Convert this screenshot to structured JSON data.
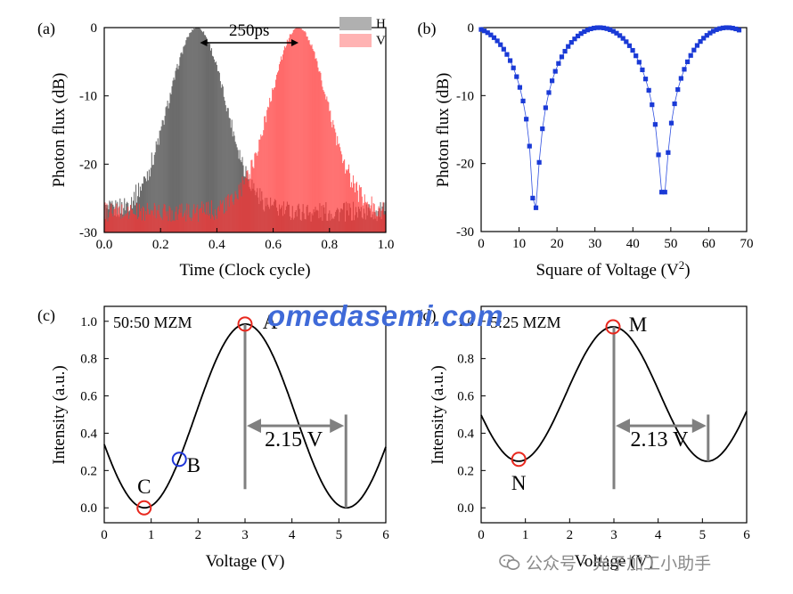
{
  "colors": {
    "axis": "#000000",
    "h_trace": "#555555",
    "v_trace": "#ff3333",
    "markers": "#1a3ad6",
    "circle_red": "#e8281e",
    "circle_blue": "#1f36d8",
    "arrow": "#808080",
    "watermark": "#3f6ad8"
  },
  "watermark": {
    "text": "omedasemi.com"
  },
  "footer": {
    "text": "公众号 · 光子加工小助手",
    "icon": "wechat-icon"
  },
  "chart_data": [
    {
      "panel": "(a)",
      "type": "area",
      "xlabel": "Time (Clock cycle)",
      "ylabel": "Photon flux (dB)",
      "xlim": [
        0.0,
        1.0
      ],
      "ylim": [
        -30,
        0
      ],
      "xticks": [
        "0.0",
        "0.2",
        "0.4",
        "0.6",
        "0.8",
        "1.0"
      ],
      "yticks": [
        "-30",
        "-20",
        "-10",
        "0"
      ],
      "legend": [
        "H",
        "V"
      ],
      "legend_position": "top-right",
      "annotations": [
        {
          "text": "250ps",
          "from": 0.34,
          "to": 0.69
        }
      ],
      "series": [
        {
          "name": "H",
          "peak_x": 0.33,
          "peak_y": 0,
          "sigma": 0.1,
          "floor": -27
        },
        {
          "name": "V",
          "peak_x": 0.69,
          "peak_y": 0,
          "sigma": 0.1,
          "floor": -27
        }
      ]
    },
    {
      "panel": "(b)",
      "type": "scatter",
      "xlabel": "Square of Voltage (V",
      "xlabel_sup": "2",
      "xlabel_end": ")",
      "ylabel": "Photon flux (dB)",
      "xlim": [
        0,
        70
      ],
      "ylim": [
        -30,
        0
      ],
      "xticks": [
        "0",
        "10",
        "20",
        "30",
        "40",
        "50",
        "60",
        "70"
      ],
      "yticks": [
        "-30",
        "-20",
        "-10",
        "0"
      ],
      "series": [
        {
          "x_start": 0,
          "x_end": 68,
          "step": 0.85,
          "minima": [
            14.2,
            48.0
          ],
          "min_values": [
            -26.5,
            -24.2
          ],
          "peaks": [
            31,
            63
          ],
          "start_value": -1.5
        }
      ]
    },
    {
      "panel": "(c)",
      "type": "line",
      "inset_label": "50:50 MZM",
      "xlabel": "Voltage (V)",
      "ylabel": "Intensity (a.u.)",
      "xlim": [
        0,
        6
      ],
      "ylim": [
        -0.08,
        1.08
      ],
      "xticks": [
        "0",
        "1",
        "2",
        "3",
        "4",
        "5",
        "6"
      ],
      "yticks": [
        "0.0",
        "0.2",
        "0.4",
        "0.6",
        "0.8",
        "1.0"
      ],
      "curve": {
        "vmax": 3.01,
        "period": 4.3,
        "ymin": 0.0,
        "ymax": 0.985
      },
      "points": [
        {
          "label": "A",
          "x": 3.0,
          "y": 0.985,
          "color": "red"
        },
        {
          "label": "B",
          "x": 1.6,
          "y": 0.26,
          "color": "blue"
        },
        {
          "label": "C",
          "x": 0.85,
          "y": 0.0,
          "color": "red"
        }
      ],
      "annotations": [
        {
          "text": "2.15 V",
          "from": 3.0,
          "to": 5.15
        }
      ]
    },
    {
      "panel": "(d)",
      "type": "line",
      "inset_label": "5:25 MZM",
      "xlabel": "Voltage (V)",
      "ylabel": "Intensity (a.u.)",
      "xlim": [
        0,
        6
      ],
      "ylim": [
        -0.08,
        1.08
      ],
      "xticks": [
        "0",
        "1",
        "2",
        "3",
        "4",
        "5",
        "6"
      ],
      "yticks": [
        "0.0",
        "0.2",
        "0.4",
        "0.6",
        "0.8",
        "1.0"
      ],
      "curve": {
        "vmax": 2.98,
        "period": 4.26,
        "ymin": 0.25,
        "ymax": 0.97
      },
      "points": [
        {
          "label": "M",
          "x": 2.98,
          "y": 0.97,
          "color": "red"
        },
        {
          "label": "N",
          "x": 0.85,
          "y": 0.26,
          "color": "red"
        }
      ],
      "annotations": [
        {
          "text": "2.13 V",
          "from": 3.0,
          "to": 5.13
        }
      ]
    }
  ]
}
